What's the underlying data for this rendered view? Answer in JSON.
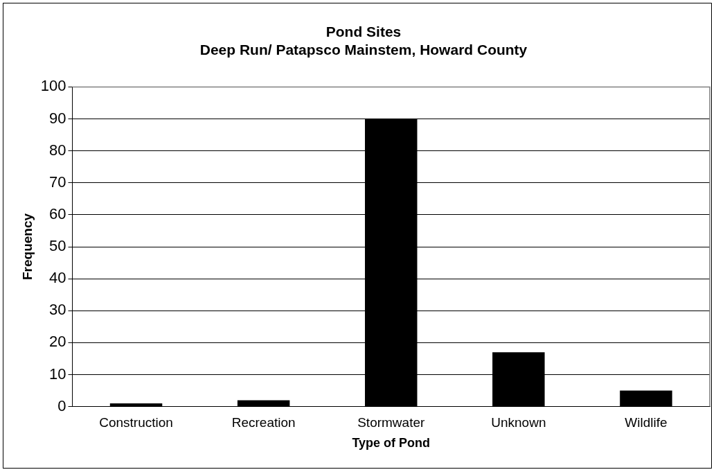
{
  "chart_data": {
    "type": "bar",
    "title": [
      "Pond Sites",
      "Deep Run/ Patapsco Mainstem, Howard County"
    ],
    "xlabel": "Type of Pond",
    "ylabel": "Frequency",
    "categories": [
      "Construction",
      "Recreation",
      "Stormwater",
      "Unknown",
      "Wildlife"
    ],
    "values": [
      1,
      2,
      90,
      17,
      5
    ],
    "color": "#000000",
    "ylim": [
      0,
      100
    ],
    "yticks": [
      0,
      10,
      20,
      30,
      40,
      50,
      60,
      70,
      80,
      90,
      100
    ],
    "grid": "y",
    "legend": false
  }
}
